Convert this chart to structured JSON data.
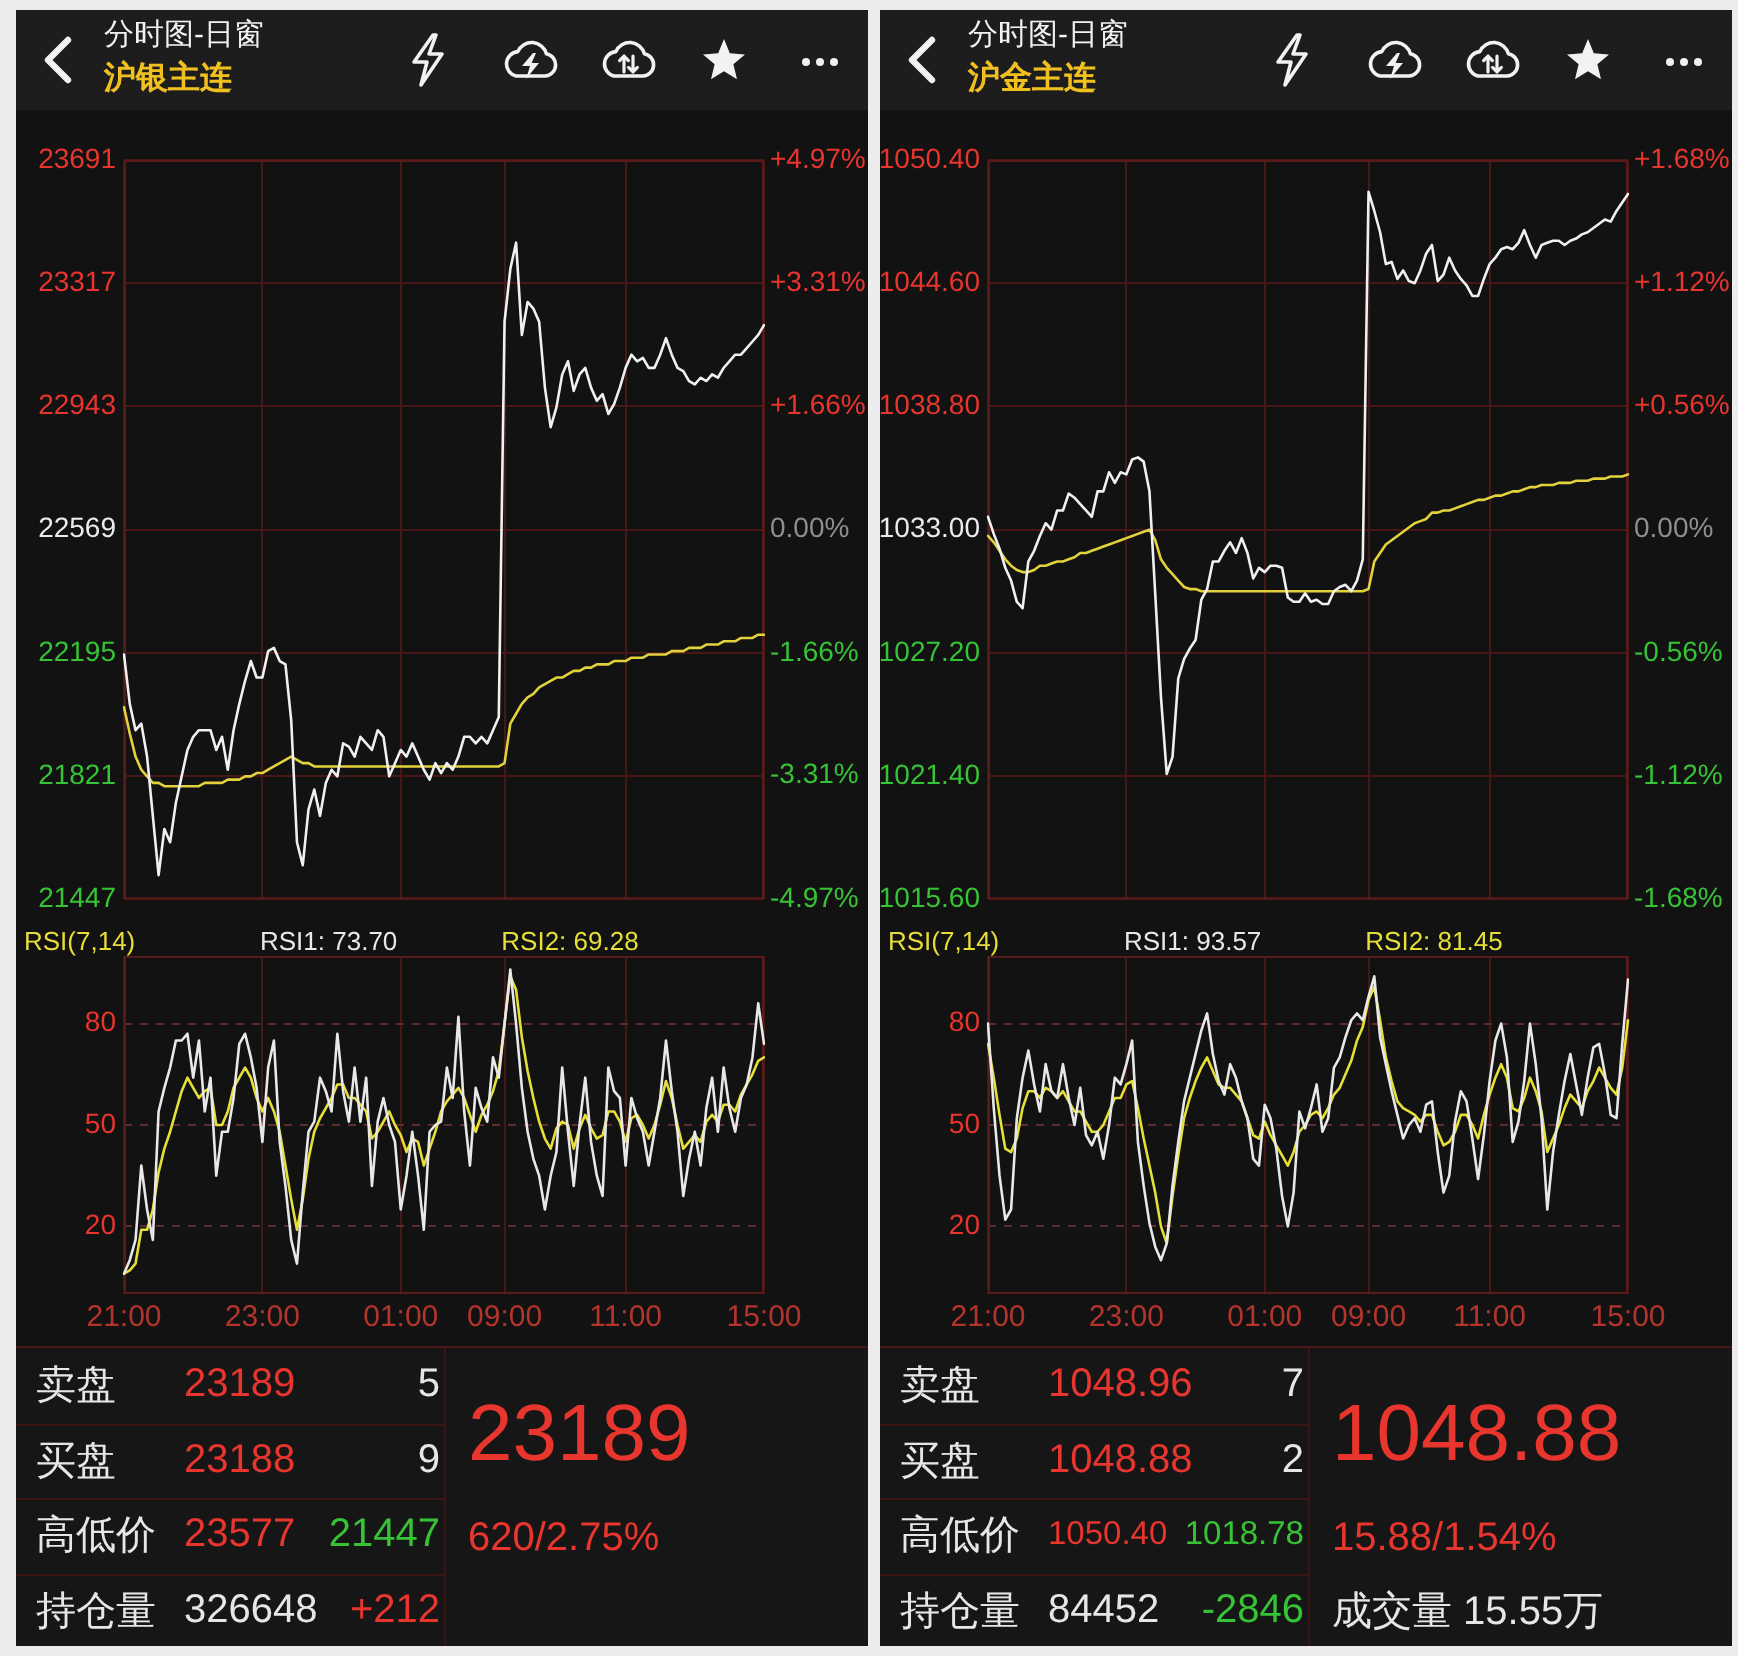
{
  "chart_data": [
    {
      "type": "line",
      "title": "分时图-日窗",
      "subtitle": "沪银主连",
      "categories": [
        null,
        null,
        null,
        null,
        null,
        null,
        null,
        null,
        null,
        null,
        null,
        null,
        null,
        null,
        null,
        null,
        null,
        null,
        null,
        null,
        null,
        null,
        null,
        null,
        null,
        null,
        null,
        null,
        null,
        null,
        null,
        null,
        null,
        null,
        null,
        null,
        null,
        null,
        null,
        null,
        null,
        null,
        null,
        null,
        null,
        null,
        null,
        null,
        null,
        null,
        null,
        null,
        null,
        null,
        null,
        null,
        null,
        null,
        null,
        null,
        null,
        null,
        null,
        null,
        null,
        null,
        null,
        null,
        null,
        null,
        null,
        null,
        null,
        null,
        null,
        null,
        null,
        null,
        null,
        null,
        null,
        null,
        null,
        null,
        null,
        null,
        null,
        null,
        null,
        null,
        null,
        null,
        null,
        null,
        null,
        null,
        null,
        null,
        null,
        null,
        null,
        null,
        null,
        null,
        null,
        null,
        null,
        null,
        null,
        null,
        null,
        null
      ],
      "ylim": [
        21447,
        23691
      ],
      "yticks": [
        23691,
        23317,
        22943,
        22569,
        22195,
        21821,
        21447
      ],
      "y2lim": [
        -4.97,
        4.97
      ],
      "y2ticks": [
        {
          "value": 4.97,
          "label": "+4.97%"
        },
        {
          "value": 3.31,
          "label": "+3.31%"
        },
        {
          "value": 1.66,
          "label": "+1.66%"
        },
        {
          "value": 0,
          "label": "0.00%"
        },
        {
          "value": -1.66,
          "label": "-1.66%"
        },
        {
          "value": -3.31,
          "label": "-3.31%"
        },
        {
          "value": -4.97,
          "label": "-4.97%"
        }
      ],
      "grid": true,
      "tick_labels": "y",
      "series": [
        {
          "color": "#f0f0f0",
          "values": [
            22190,
            22040,
            21960,
            21980,
            21880,
            21700,
            21520,
            21660,
            21620,
            21740,
            21820,
            21900,
            21940,
            21960,
            21960,
            21960,
            21900,
            21940,
            21840,
            21960,
            22040,
            22110,
            22170,
            22120,
            22120,
            22200,
            22210,
            22170,
            22160,
            21990,
            21620,
            21550,
            21720,
            21780,
            21700,
            21800,
            21840,
            21820,
            21920,
            21910,
            21880,
            21940,
            21920,
            21900,
            21960,
            21940,
            21820,
            21860,
            21900,
            21880,
            21920,
            21880,
            21840,
            21810,
            21860,
            21830,
            21860,
            21840,
            21880,
            21940,
            21940,
            21920,
            21940,
            21920,
            21960,
            22000,
            23200,
            23360,
            23440,
            23160,
            23260,
            23240,
            23200,
            23000,
            22880,
            22940,
            23040,
            23080,
            22990,
            23040,
            23060,
            23000,
            22960,
            22980,
            22920,
            22950,
            23000,
            23060,
            23100,
            23080,
            23090,
            23060,
            23060,
            23100,
            23150,
            23100,
            23060,
            23050,
            23020,
            23010,
            23030,
            23020,
            23040,
            23030,
            23060,
            23080,
            23100,
            23100,
            23120,
            23140,
            23160,
            23190
          ]
        },
        {
          "color": "#e3d23c",
          "values": [
            22030,
            21950,
            21880,
            21840,
            21820,
            21800,
            21800,
            21790,
            21790,
            21790,
            21790,
            21790,
            21790,
            21790,
            21800,
            21800,
            21800,
            21800,
            21810,
            21810,
            21810,
            21820,
            21820,
            21830,
            21830,
            21840,
            21850,
            21860,
            21870,
            21880,
            21870,
            21860,
            21860,
            21850,
            21850,
            21850,
            21850,
            21850,
            21850,
            21850,
            21850,
            21850,
            21850,
            21850,
            21850,
            21850,
            21850,
            21850,
            21850,
            21850,
            21850,
            21850,
            21850,
            21850,
            21850,
            21850,
            21850,
            21850,
            21850,
            21850,
            21850,
            21850,
            21850,
            21850,
            21850,
            21850,
            21860,
            21980,
            22010,
            22040,
            22060,
            22070,
            22090,
            22100,
            22110,
            22120,
            22120,
            22130,
            22140,
            22140,
            22150,
            22150,
            22160,
            22160,
            22160,
            22170,
            22170,
            22170,
            22180,
            22180,
            22180,
            22190,
            22190,
            22190,
            22190,
            22200,
            22200,
            22200,
            22210,
            22210,
            22210,
            22220,
            22220,
            22220,
            22230,
            22230,
            22230,
            22240,
            22240,
            22240,
            22250,
            22250
          ]
        }
      ]
    },
    {
      "type": "line",
      "title": "RSI(7,14)",
      "categories": [
        "21:00",
        null,
        null,
        null,
        null,
        null,
        null,
        null,
        null,
        null,
        null,
        null,
        null,
        null,
        null,
        null,
        null,
        null,
        null,
        null,
        null,
        null,
        null,
        null,
        "23:00",
        null,
        null,
        null,
        null,
        null,
        null,
        null,
        null,
        null,
        null,
        null,
        null,
        null,
        null,
        null,
        null,
        null,
        null,
        null,
        null,
        null,
        null,
        null,
        "01:00",
        null,
        null,
        null,
        null,
        null,
        null,
        null,
        null,
        null,
        null,
        null,
        null,
        null,
        null,
        null,
        null,
        null,
        "09:00",
        null,
        null,
        null,
        null,
        null,
        null,
        null,
        null,
        null,
        null,
        null,
        null,
        null,
        null,
        null,
        null,
        null,
        null,
        null,
        null,
        "11:00",
        null,
        null,
        null,
        null,
        null,
        null,
        null,
        null,
        null,
        null,
        null,
        null,
        null,
        null,
        null,
        null,
        null,
        null,
        null,
        null,
        null,
        null,
        null,
        "15:00"
      ],
      "ylim": [
        0,
        100
      ],
      "yticks": [
        20,
        50,
        80
      ],
      "grid": true,
      "legend": "top",
      "series": [
        {
          "name": "RSI1: 73.70",
          "color": "#e8e8e8",
          "values": [
            6,
            10,
            16,
            38,
            25,
            16,
            54,
            61,
            67,
            75,
            75,
            77,
            64,
            75,
            54,
            64,
            35,
            48,
            48,
            58,
            74,
            77,
            70,
            61,
            45,
            67,
            75,
            45,
            32,
            16,
            9,
            30,
            48,
            51,
            64,
            60,
            54,
            77,
            60,
            51,
            67,
            51,
            64,
            32,
            51,
            58,
            50,
            45,
            25,
            35,
            48,
            35,
            19,
            48,
            50,
            51,
            67,
            58,
            82,
            54,
            38,
            61,
            55,
            51,
            70,
            64,
            80,
            96,
            80,
            61,
            48,
            40,
            35,
            25,
            35,
            42,
            67,
            48,
            32,
            50,
            64,
            45,
            35,
            29,
            67,
            60,
            58,
            38,
            58,
            52,
            48,
            38,
            48,
            58,
            75,
            60,
            48,
            29,
            40,
            48,
            38,
            55,
            64,
            48,
            67,
            55,
            48,
            58,
            62,
            70,
            86,
            74
          ]
        },
        {
          "name": "RSI2: 69.28",
          "color": "#e6df3a",
          "values": [
            6,
            7,
            9,
            19,
            19,
            25,
            36,
            43,
            48,
            54,
            60,
            64,
            61,
            58,
            60,
            61,
            50,
            50,
            54,
            61,
            64,
            67,
            64,
            58,
            54,
            58,
            54,
            48,
            38,
            28,
            19,
            28,
            40,
            48,
            52,
            55,
            58,
            62,
            62,
            58,
            58,
            56,
            54,
            46,
            48,
            51,
            54,
            50,
            47,
            42,
            46,
            45,
            38,
            43,
            48,
            54,
            57,
            59,
            61,
            58,
            53,
            48,
            53,
            56,
            60,
            66,
            80,
            94,
            90,
            76,
            66,
            58,
            51,
            46,
            43,
            49,
            51,
            50,
            43,
            49,
            53,
            49,
            46,
            47,
            54,
            54,
            51,
            45,
            52,
            53,
            50,
            46,
            50,
            56,
            63,
            58,
            50,
            43,
            45,
            47,
            45,
            51,
            53,
            51,
            56,
            56,
            54,
            59,
            62,
            65,
            69,
            70
          ]
        }
      ]
    },
    {
      "type": "other",
      "annotations": [
        "卖盘",
        "23189",
        "5",
        "买盘",
        "23188",
        "9",
        "高低价",
        "23577",
        "21447",
        "持仓量",
        "326648",
        "+212",
        "23189",
        "620/2.75%"
      ],
      "colors": [
        "#e6e6e6",
        "#e8352e",
        "#e6e6e6",
        "#e6e6e6",
        "#e8352e",
        "#e6e6e6",
        "#e6e6e6",
        "#e8352e",
        "#36c336",
        "#e6e6e6",
        "#e6e6e6",
        "#e8352e",
        "#e8352e",
        "#e8352e"
      ]
    },
    {
      "type": "line",
      "title": "分时图-日窗",
      "subtitle": "沪金主连",
      "categories": [
        null,
        null,
        null,
        null,
        null,
        null,
        null,
        null,
        null,
        null,
        null,
        null,
        null,
        null,
        null,
        null,
        null,
        null,
        null,
        null,
        null,
        null,
        null,
        null,
        null,
        null,
        null,
        null,
        null,
        null,
        null,
        null,
        null,
        null,
        null,
        null,
        null,
        null,
        null,
        null,
        null,
        null,
        null,
        null,
        null,
        null,
        null,
        null,
        null,
        null,
        null,
        null,
        null,
        null,
        null,
        null,
        null,
        null,
        null,
        null,
        null,
        null,
        null,
        null,
        null,
        null,
        null,
        null,
        null,
        null,
        null,
        null,
        null,
        null,
        null,
        null,
        null,
        null,
        null,
        null,
        null,
        null,
        null,
        null,
        null,
        null,
        null,
        null,
        null,
        null,
        null,
        null,
        null,
        null,
        null,
        null,
        null,
        null,
        null,
        null,
        null,
        null,
        null,
        null,
        null,
        null,
        null,
        null,
        null,
        null,
        null,
        null
      ],
      "ylim": [
        1015.6,
        1050.4
      ],
      "yticks": [
        {
          "value": 1050.4,
          "label": "1050.40"
        },
        {
          "value": 1044.6,
          "label": "1044.60"
        },
        {
          "value": 1038.8,
          "label": "1038.80"
        },
        {
          "value": 1033,
          "label": "1033.00"
        },
        {
          "value": 1027.2,
          "label": "1027.20"
        },
        {
          "value": 1021.4,
          "label": "1021.40"
        },
        {
          "value": 1015.6,
          "label": "1015.60"
        }
      ],
      "y2lim": [
        -1.68,
        1.68
      ],
      "y2ticks": [
        {
          "value": 1.68,
          "label": "+1.68%"
        },
        {
          "value": 1.12,
          "label": "+1.12%"
        },
        {
          "value": 0.56,
          "label": "+0.56%"
        },
        {
          "value": 0,
          "label": "0.00%"
        },
        {
          "value": -0.56,
          "label": "-0.56%"
        },
        {
          "value": -1.12,
          "label": "-1.12%"
        },
        {
          "value": -1.68,
          "label": "-1.68%"
        }
      ],
      "grid": true,
      "tick_labels": "y",
      "series": [
        {
          "color": "#f0f0f0",
          "values": [
            1033.6,
            1032.8,
            1032.1,
            1031.2,
            1030.6,
            1029.6,
            1029.3,
            1031.5,
            1032.0,
            1032.7,
            1033.3,
            1033.0,
            1033.9,
            1033.9,
            1034.7,
            1034.5,
            1034.2,
            1033.9,
            1033.6,
            1034.8,
            1034.8,
            1035.7,
            1035.2,
            1035.7,
            1035.6,
            1036.3,
            1036.4,
            1036.2,
            1034.8,
            1030.0,
            1025.1,
            1021.5,
            1022.3,
            1026.0,
            1026.9,
            1027.4,
            1027.8,
            1029.7,
            1030.2,
            1031.5,
            1031.5,
            1032.0,
            1032.4,
            1031.9,
            1032.6,
            1031.9,
            1030.7,
            1031.2,
            1031.0,
            1031.3,
            1031.3,
            1031.2,
            1029.8,
            1029.6,
            1029.6,
            1030.0,
            1029.6,
            1029.7,
            1029.5,
            1029.5,
            1030.1,
            1030.3,
            1030.4,
            1030.1,
            1030.6,
            1031.6,
            1048.9,
            1048.0,
            1047.0,
            1045.5,
            1045.6,
            1044.8,
            1045.2,
            1044.7,
            1044.6,
            1045.2,
            1046.0,
            1046.4,
            1044.7,
            1045.0,
            1045.8,
            1045.2,
            1044.8,
            1044.5,
            1044.0,
            1044.0,
            1044.8,
            1045.5,
            1045.8,
            1046.2,
            1046.3,
            1046.2,
            1046.5,
            1047.1,
            1046.4,
            1045.8,
            1046.4,
            1046.5,
            1046.6,
            1046.6,
            1046.4,
            1046.6,
            1046.7,
            1046.9,
            1047.0,
            1047.2,
            1047.4,
            1047.6,
            1047.5,
            1048.0,
            1048.4,
            1048.8
          ]
        },
        {
          "color": "#e3d23c",
          "values": [
            1032.7,
            1032.4,
            1032.0,
            1031.6,
            1031.3,
            1031.1,
            1031.0,
            1031.0,
            1031.1,
            1031.3,
            1031.3,
            1031.4,
            1031.5,
            1031.5,
            1031.6,
            1031.7,
            1031.9,
            1031.9,
            1032.0,
            1032.1,
            1032.2,
            1032.3,
            1032.4,
            1032.5,
            1032.6,
            1032.7,
            1032.8,
            1032.9,
            1033.0,
            1032.5,
            1031.6,
            1031.2,
            1030.9,
            1030.6,
            1030.3,
            1030.2,
            1030.2,
            1030.1,
            1030.1,
            1030.1,
            1030.1,
            1030.1,
            1030.1,
            1030.1,
            1030.1,
            1030.1,
            1030.1,
            1030.1,
            1030.1,
            1030.1,
            1030.1,
            1030.1,
            1030.1,
            1030.1,
            1030.1,
            1030.1,
            1030.1,
            1030.1,
            1030.1,
            1030.1,
            1030.1,
            1030.1,
            1030.1,
            1030.1,
            1030.1,
            1030.1,
            1030.2,
            1031.5,
            1031.9,
            1032.3,
            1032.5,
            1032.7,
            1032.9,
            1033.1,
            1033.3,
            1033.4,
            1033.5,
            1033.8,
            1033.8,
            1033.9,
            1033.9,
            1034.0,
            1034.1,
            1034.2,
            1034.3,
            1034.4,
            1034.4,
            1034.5,
            1034.6,
            1034.6,
            1034.7,
            1034.8,
            1034.8,
            1034.9,
            1035.0,
            1035.0,
            1035.1,
            1035.1,
            1035.1,
            1035.2,
            1035.2,
            1035.2,
            1035.3,
            1035.3,
            1035.3,
            1035.4,
            1035.4,
            1035.4,
            1035.5,
            1035.5,
            1035.5,
            1035.6
          ]
        }
      ]
    },
    {
      "type": "line",
      "title": "RSI(7,14)",
      "categories": [
        "21:00",
        null,
        null,
        null,
        null,
        null,
        null,
        null,
        null,
        null,
        null,
        null,
        null,
        null,
        null,
        null,
        null,
        null,
        null,
        null,
        null,
        null,
        null,
        null,
        "23:00",
        null,
        null,
        null,
        null,
        null,
        null,
        null,
        null,
        null,
        null,
        null,
        null,
        null,
        null,
        null,
        null,
        null,
        null,
        null,
        null,
        null,
        null,
        null,
        "01:00",
        null,
        null,
        null,
        null,
        null,
        null,
        null,
        null,
        null,
        null,
        null,
        null,
        null,
        null,
        null,
        null,
        null,
        "09:00",
        null,
        null,
        null,
        null,
        null,
        null,
        null,
        null,
        null,
        null,
        null,
        null,
        null,
        null,
        null,
        null,
        null,
        null,
        null,
        null,
        "11:00",
        null,
        null,
        null,
        null,
        null,
        null,
        null,
        null,
        null,
        null,
        null,
        null,
        null,
        null,
        null,
        null,
        null,
        null,
        null,
        null,
        null,
        null,
        null,
        "15:00"
      ],
      "ylim": [
        0,
        100
      ],
      "yticks": [
        20,
        50,
        80
      ],
      "grid": true,
      "legend": "top",
      "series": [
        {
          "name": "RSI1: 93.57",
          "color": "#e8e8e8",
          "values": [
            80,
            55,
            35,
            22,
            25,
            52,
            64,
            72,
            62,
            54,
            68,
            60,
            58,
            68,
            58,
            50,
            61,
            47,
            44,
            48,
            40,
            50,
            64,
            62,
            68,
            75,
            45,
            32,
            21,
            14,
            10,
            15,
            32,
            45,
            57,
            64,
            71,
            78,
            83,
            71,
            63,
            59,
            68,
            64,
            57,
            52,
            40,
            38,
            56,
            52,
            43,
            29,
            20,
            30,
            54,
            49,
            55,
            62,
            48,
            52,
            67,
            70,
            76,
            81,
            83,
            81,
            88,
            94,
            76,
            68,
            60,
            53,
            46,
            50,
            52,
            48,
            56,
            57,
            42,
            30,
            35,
            51,
            60,
            57,
            46,
            34,
            47,
            63,
            75,
            80,
            70,
            45,
            51,
            63,
            80,
            68,
            52,
            25,
            42,
            53,
            63,
            71,
            62,
            53,
            64,
            73,
            74,
            65,
            53,
            52,
            74,
            93
          ]
        },
        {
          "name": "RSI2: 81.45",
          "color": "#e6df3a",
          "values": [
            74,
            64,
            53,
            43,
            42,
            46,
            55,
            60,
            60,
            58,
            61,
            60,
            58,
            60,
            57,
            54,
            54,
            51,
            48,
            48,
            50,
            54,
            58,
            58,
            62,
            63,
            55,
            46,
            38,
            30,
            20,
            15,
            29,
            41,
            52,
            58,
            63,
            67,
            70,
            66,
            62,
            61,
            61,
            59,
            57,
            52,
            47,
            46,
            51,
            47,
            44,
            41,
            38,
            42,
            48,
            50,
            53,
            54,
            52,
            55,
            59,
            61,
            65,
            69,
            75,
            79,
            87,
            91,
            81,
            70,
            63,
            57,
            55,
            54,
            53,
            51,
            53,
            53,
            48,
            44,
            45,
            48,
            53,
            53,
            50,
            46,
            53,
            59,
            64,
            68,
            64,
            55,
            54,
            58,
            64,
            60,
            54,
            42,
            46,
            50,
            55,
            59,
            57,
            55,
            60,
            63,
            67,
            64,
            61,
            59,
            67,
            81
          ]
        }
      ]
    },
    {
      "type": "other",
      "annotations": [
        "卖盘",
        "1048.96",
        "7",
        "买盘",
        "1048.88",
        "2",
        "高低价",
        "1050.40",
        "1018.78",
        "持仓量",
        "84452",
        "-2846",
        "1048.88",
        "15.88/1.54%",
        "成交量 15.55万"
      ],
      "colors": [
        "#e6e6e6",
        "#e8352e",
        "#e6e6e6",
        "#e6e6e6",
        "#e8352e",
        "#e6e6e6",
        "#e6e6e6",
        "#e8352e",
        "#36c336",
        "#e6e6e6",
        "#e6e6e6",
        "#36c336",
        "#e8352e",
        "#e8352e",
        "#e6e6e6"
      ]
    }
  ]
}
